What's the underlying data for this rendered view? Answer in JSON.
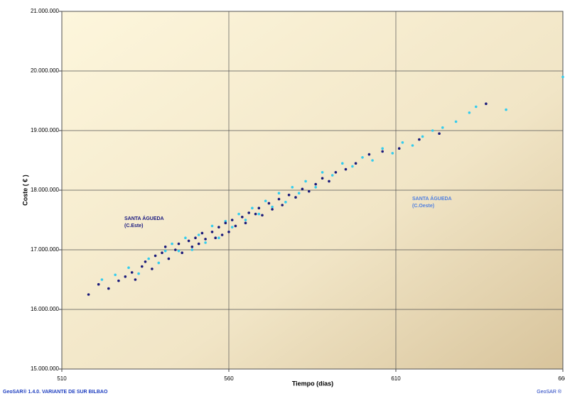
{
  "chart_data": {
    "type": "scatter",
    "xlabel": "Tiempo (días)",
    "ylabel": "Coste ( € )",
    "xlim": [
      510,
      660
    ],
    "xticks": [
      510,
      560,
      610,
      660
    ],
    "ylim": [
      15000000,
      21000000
    ],
    "yticks": [
      {
        "value": 15000000,
        "label": "15.000.000"
      },
      {
        "value": 16000000,
        "label": "16.000.000"
      },
      {
        "value": 17000000,
        "label": "17.000.000"
      },
      {
        "value": 18000000,
        "label": "18.000.000"
      },
      {
        "value": 19000000,
        "label": "19.000.000"
      },
      {
        "value": 20000000,
        "label": "20.000.000"
      },
      {
        "value": 21000000,
        "label": "21.000.000"
      }
    ],
    "grid": true,
    "annotations": [
      {
        "lines": [
          "SANTA ÁGUEDA",
          "(C.Este)"
        ],
        "color": "#1a1a80"
      },
      {
        "lines": [
          "SANTA ÁGUEDA",
          "(C.Oeste)"
        ],
        "color": "#4f7fe0"
      }
    ],
    "series": [
      {
        "color": "#33ccee",
        "x": [
          522,
          526,
          530,
          533,
          536,
          539,
          541,
          543,
          545,
          547,
          549,
          551,
          553,
          555,
          557,
          559,
          561,
          563,
          565,
          567,
          569,
          571,
          573,
          575,
          577,
          579,
          581,
          583,
          586,
          588,
          591,
          594,
          597,
          600,
          603,
          606,
          609,
          612,
          615,
          618,
          621,
          624,
          628,
          632,
          634,
          643,
          660
        ],
        "values": [
          16500000,
          16580000,
          16700000,
          16600000,
          16850000,
          16780000,
          16980000,
          17100000,
          16980000,
          17200000,
          17000000,
          17250000,
          17120000,
          17400000,
          17200000,
          17480000,
          17380000,
          17600000,
          17500000,
          17700000,
          17600000,
          17820000,
          17720000,
          17950000,
          17800000,
          18050000,
          17950000,
          18150000,
          18050000,
          18300000,
          18250000,
          18450000,
          18400000,
          18550000,
          18500000,
          18700000,
          18620000,
          18800000,
          18750000,
          18900000,
          19000000,
          19050000,
          19150000,
          19300000,
          19400000,
          19350000,
          19900000
        ]
      },
      {
        "color": "#1a1a7a",
        "x": [
          518,
          521,
          524,
          527,
          529,
          531,
          532,
          534,
          535,
          537,
          538,
          540,
          541,
          542,
          544,
          545,
          546,
          548,
          549,
          550,
          551,
          552,
          553,
          555,
          556,
          557,
          558,
          559,
          560,
          561,
          562,
          564,
          565,
          566,
          568,
          569,
          570,
          572,
          573,
          575,
          576,
          578,
          580,
          582,
          584,
          586,
          588,
          590,
          592,
          595,
          598,
          602,
          606,
          611,
          617,
          623,
          637
        ],
        "values": [
          16250000,
          16420000,
          16350000,
          16480000,
          16550000,
          16620000,
          16500000,
          16720000,
          16800000,
          16680000,
          16900000,
          16950000,
          17050000,
          16850000,
          17000000,
          17100000,
          16950000,
          17150000,
          17050000,
          17200000,
          17100000,
          17280000,
          17180000,
          17300000,
          17200000,
          17380000,
          17250000,
          17450000,
          17300000,
          17500000,
          17400000,
          17550000,
          17450000,
          17620000,
          17600000,
          17700000,
          17580000,
          17780000,
          17680000,
          17850000,
          17750000,
          17920000,
          17880000,
          18020000,
          17980000,
          18100000,
          18200000,
          18150000,
          18300000,
          18350000,
          18450000,
          18600000,
          18650000,
          18700000,
          18850000,
          18950000,
          19450000
        ]
      }
    ]
  },
  "footer": {
    "left": "GeoSAR® 1.4.0.   VARIANTE DE SUR BILBAO",
    "right": "GeoSAR ®"
  }
}
